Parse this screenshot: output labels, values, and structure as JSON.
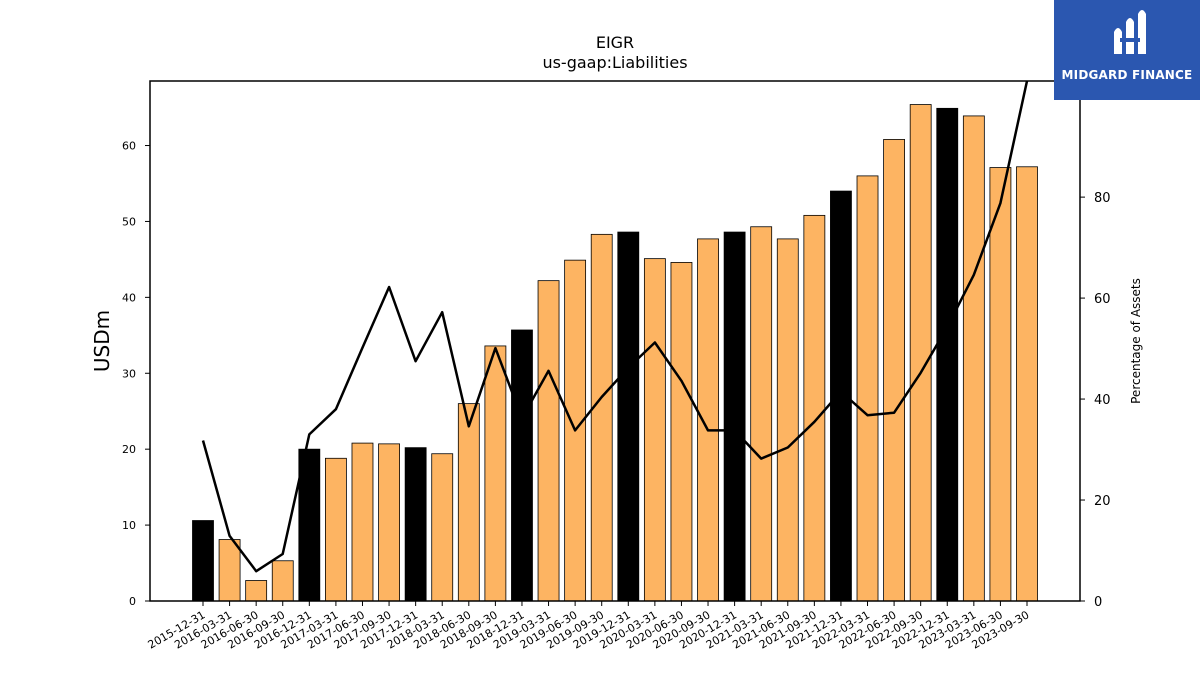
{
  "logo": {
    "text": "MIDGARD FINANCE",
    "background": "#2b57b0"
  },
  "chart_data": {
    "type": "bar",
    "title": "EIGR",
    "subtitle": "us-gaap:Liabilities",
    "ylabel": "USDm",
    "y2label": "Percentage of Assets",
    "ylim": [
      0,
      68.5
    ],
    "y2lim": [
      0,
      103
    ],
    "yticks": [
      0,
      10,
      20,
      30,
      40,
      50,
      60
    ],
    "y2ticks": [
      0,
      20,
      40,
      60,
      80
    ],
    "colors": {
      "annual": "#000000",
      "quarterly": "#fdb462",
      "line": "#000000"
    },
    "categories": [
      "2015-12-31",
      "2016-03-31",
      "2016-06-30",
      "2016-09-30",
      "2016-12-31",
      "2017-03-31",
      "2017-06-30",
      "2017-09-30",
      "2017-12-31",
      "2018-03-31",
      "2018-06-30",
      "2018-09-30",
      "2018-12-31",
      "2019-03-31",
      "2019-06-30",
      "2019-09-30",
      "2019-12-31",
      "2020-03-31",
      "2020-06-30",
      "2020-09-30",
      "2020-12-31",
      "2021-03-31",
      "2021-06-30",
      "2021-09-30",
      "2021-12-31",
      "2022-03-31",
      "2022-06-30",
      "2022-09-30",
      "2022-12-31",
      "2023-03-31",
      "2023-06-30",
      "2023-09-30"
    ],
    "series": [
      {
        "type": "bar",
        "values": [
          10.6,
          8.1,
          2.7,
          5.3,
          20.0,
          18.8,
          20.8,
          20.7,
          20.2,
          19.4,
          26.0,
          33.6,
          35.7,
          42.2,
          44.9,
          48.3,
          48.6,
          45.1,
          44.6,
          47.7,
          48.6,
          49.3,
          47.7,
          50.8,
          54.0,
          56.0,
          60.8,
          65.4,
          64.9,
          63.9,
          57.1,
          57.2
        ]
      },
      {
        "type": "line",
        "axis": "right",
        "values": [
          31.8,
          12.9,
          5.9,
          9.3,
          33.0,
          38.0,
          50.2,
          62.2,
          47.5,
          57.2,
          34.6,
          50.1,
          36.2,
          45.6,
          33.8,
          40.4,
          46.2,
          51.2,
          43.6,
          33.8,
          33.8,
          28.2,
          30.4,
          35.5,
          41.5,
          36.8,
          37.3,
          45.2,
          54.3,
          64.6,
          78.8,
          103.0
        ]
      }
    ]
  }
}
